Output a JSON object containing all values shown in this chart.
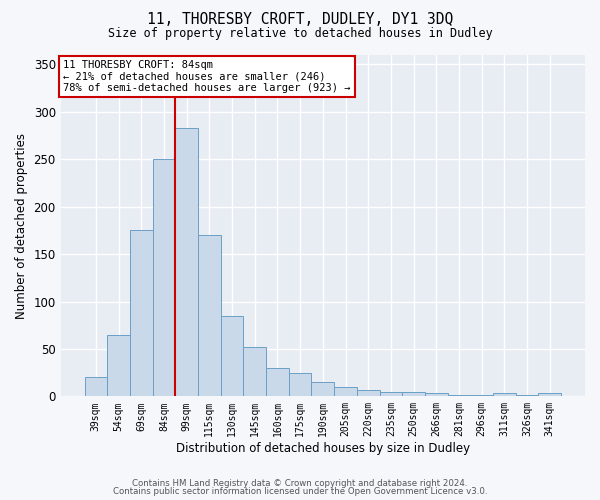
{
  "title": "11, THORESBY CROFT, DUDLEY, DY1 3DQ",
  "subtitle": "Size of property relative to detached houses in Dudley",
  "xlabel": "Distribution of detached houses by size in Dudley",
  "ylabel": "Number of detached properties",
  "bar_color": "#c9d9ea",
  "bar_edge_color": "#6b9fc7",
  "axes_bg_color": "#e8edf4",
  "fig_bg_color": "#f5f7fa",
  "grid_color": "#ffffff",
  "categories": [
    "39sqm",
    "54sqm",
    "69sqm",
    "84sqm",
    "99sqm",
    "115sqm",
    "130sqm",
    "145sqm",
    "160sqm",
    "175sqm",
    "190sqm",
    "205sqm",
    "220sqm",
    "235sqm",
    "250sqm",
    "266sqm",
    "281sqm",
    "296sqm",
    "311sqm",
    "326sqm",
    "341sqm"
  ],
  "values": [
    20,
    65,
    175,
    250,
    283,
    170,
    85,
    52,
    30,
    25,
    15,
    10,
    7,
    5,
    5,
    4,
    1,
    1,
    4,
    1,
    3
  ],
  "vline_bin_index": 3,
  "annotation_line1": "11 THORESBY CROFT: 84sqm",
  "annotation_line2": "← 21% of detached houses are smaller (246)",
  "annotation_line3": "78% of semi-detached houses are larger (923) →",
  "annotation_box_color": "#ffffff",
  "annotation_border_color": "#cc0000",
  "vline_color": "#cc0000",
  "ylim": [
    0,
    360
  ],
  "yticks": [
    0,
    50,
    100,
    150,
    200,
    250,
    300,
    350
  ],
  "footer1": "Contains HM Land Registry data © Crown copyright and database right 2024.",
  "footer2": "Contains public sector information licensed under the Open Government Licence v3.0."
}
